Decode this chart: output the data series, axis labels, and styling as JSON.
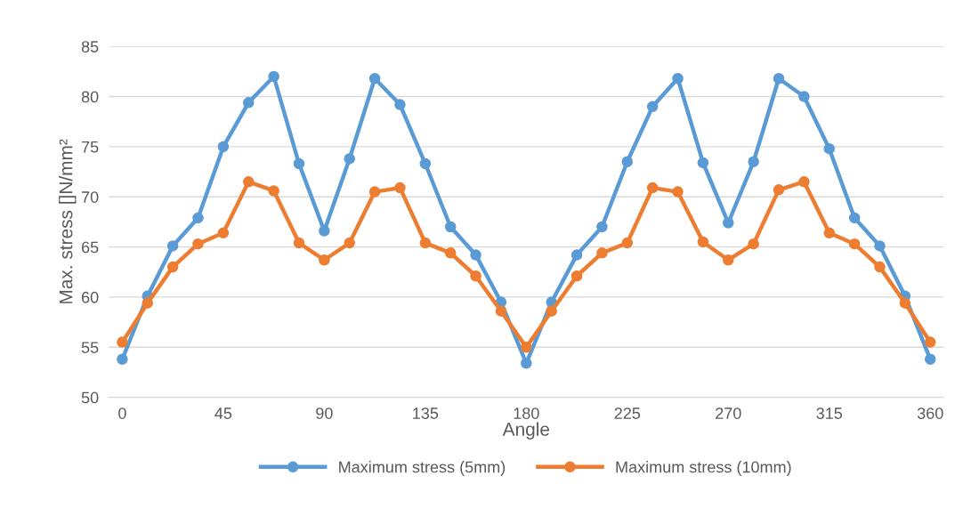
{
  "chart_data": {
    "type": "line",
    "xlabel": "Angle",
    "ylabel": "Max. stress []N/mm²",
    "x": [
      0,
      11.25,
      22.5,
      33.75,
      45,
      56.25,
      67.5,
      78.75,
      90,
      101.25,
      112.5,
      123.75,
      135,
      146.25,
      157.5,
      168.75,
      180,
      191.25,
      202.5,
      213.75,
      225,
      236.25,
      247.5,
      258.75,
      270,
      281.25,
      292.5,
      303.75,
      315,
      326.25,
      337.5,
      348.75,
      360
    ],
    "series": [
      {
        "name": "Maximum stress (5mm)",
        "color": "#5b9bd5",
        "values": [
          53.8,
          60.1,
          65.1,
          67.9,
          75.0,
          79.4,
          82.0,
          73.3,
          66.6,
          73.8,
          81.8,
          79.2,
          73.3,
          67.0,
          64.2,
          59.5,
          53.4,
          59.5,
          64.2,
          67.0,
          73.5,
          79.0,
          81.8,
          73.4,
          67.4,
          73.5,
          81.8,
          80.0,
          74.8,
          67.9,
          65.1,
          60.1,
          53.8
        ]
      },
      {
        "name": "Maximum stress (10mm)",
        "color": "#ed7d31",
        "values": [
          55.5,
          59.4,
          63.0,
          65.3,
          66.4,
          71.5,
          70.6,
          65.4,
          63.7,
          65.4,
          70.5,
          70.9,
          65.4,
          64.4,
          62.1,
          58.6,
          55.0,
          58.6,
          62.1,
          64.4,
          65.4,
          70.9,
          70.5,
          65.5,
          63.7,
          65.3,
          70.7,
          71.5,
          66.4,
          65.3,
          63.0,
          59.4,
          55.5
        ]
      }
    ],
    "xlim": [
      -6,
      366
    ],
    "xticks": [
      0,
      45,
      90,
      135,
      180,
      225,
      270,
      315,
      360
    ],
    "ylim": [
      50,
      85
    ],
    "yticks": [
      50,
      55,
      60,
      65,
      70,
      75,
      80,
      85
    ],
    "grid": "y",
    "legend": "bottom",
    "marker": "circle",
    "line_style": "solid"
  }
}
